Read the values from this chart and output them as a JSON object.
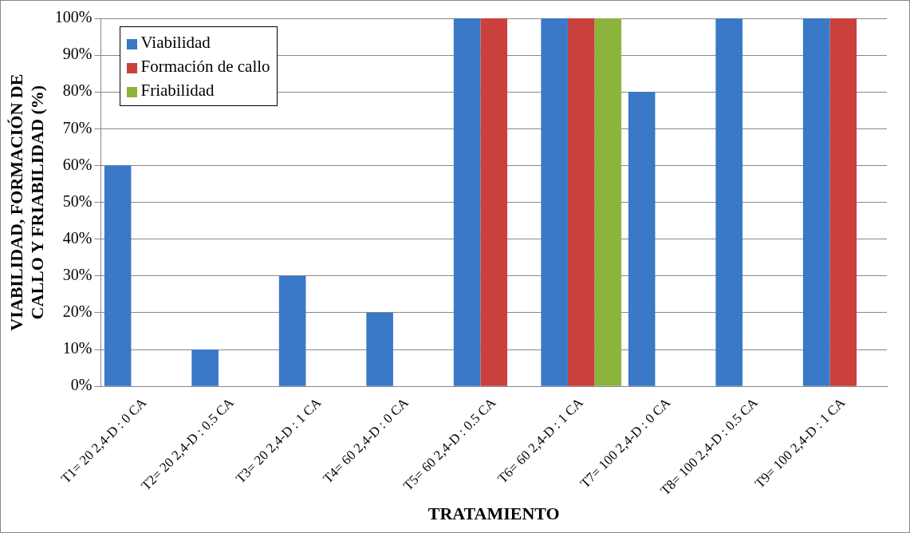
{
  "chart_data": {
    "type": "bar",
    "xlabel": "TRATAMIENTO",
    "ylabel": "VIABILIDAD, FORMACIÓN DE CALLO Y FRIABILIDAD (%)",
    "categories": [
      "T1= 20 2,4-D : 0 CA",
      "T2= 20 2,4-D : 0.5 CA",
      "T3= 20 2,4-D : 1 CA",
      "T4= 60 2,4-D : 0 CA",
      "T5= 60 2,4-D : 0.5 CA",
      "T6= 60 2,4-D : 1 CA",
      "T7= 100 2,4-D : 0 CA",
      "T8= 100 2,4-D : 0.5 CA",
      "T9= 100 2,4-D : 1 CA"
    ],
    "series": [
      {
        "name": "Viabilidad",
        "color": "#3a78c8",
        "values": [
          60,
          10,
          30,
          20,
          100,
          100,
          80,
          100,
          100
        ]
      },
      {
        "name": "Formación de callo",
        "color": "#c9403c",
        "values": [
          0,
          0,
          0,
          0,
          100,
          100,
          0,
          0,
          100
        ]
      },
      {
        "name": "Friabilidad",
        "color": "#8cb33c",
        "values": [
          0,
          0,
          0,
          0,
          0,
          100,
          0,
          0,
          0
        ]
      }
    ],
    "ylim": [
      0,
      100
    ],
    "yticks": [
      {
        "value": 0,
        "label": "0%"
      },
      {
        "value": 10,
        "label": "10%"
      },
      {
        "value": 20,
        "label": "20%"
      },
      {
        "value": 30,
        "label": "30%"
      },
      {
        "value": 40,
        "label": "40%"
      },
      {
        "value": 50,
        "label": "50%"
      },
      {
        "value": 60,
        "label": "60%"
      },
      {
        "value": 70,
        "label": "70%"
      },
      {
        "value": 80,
        "label": "80%"
      },
      {
        "value": 90,
        "label": "90%"
      },
      {
        "value": 100,
        "label": "100%"
      }
    ],
    "grid": "y",
    "legend": "top left"
  }
}
